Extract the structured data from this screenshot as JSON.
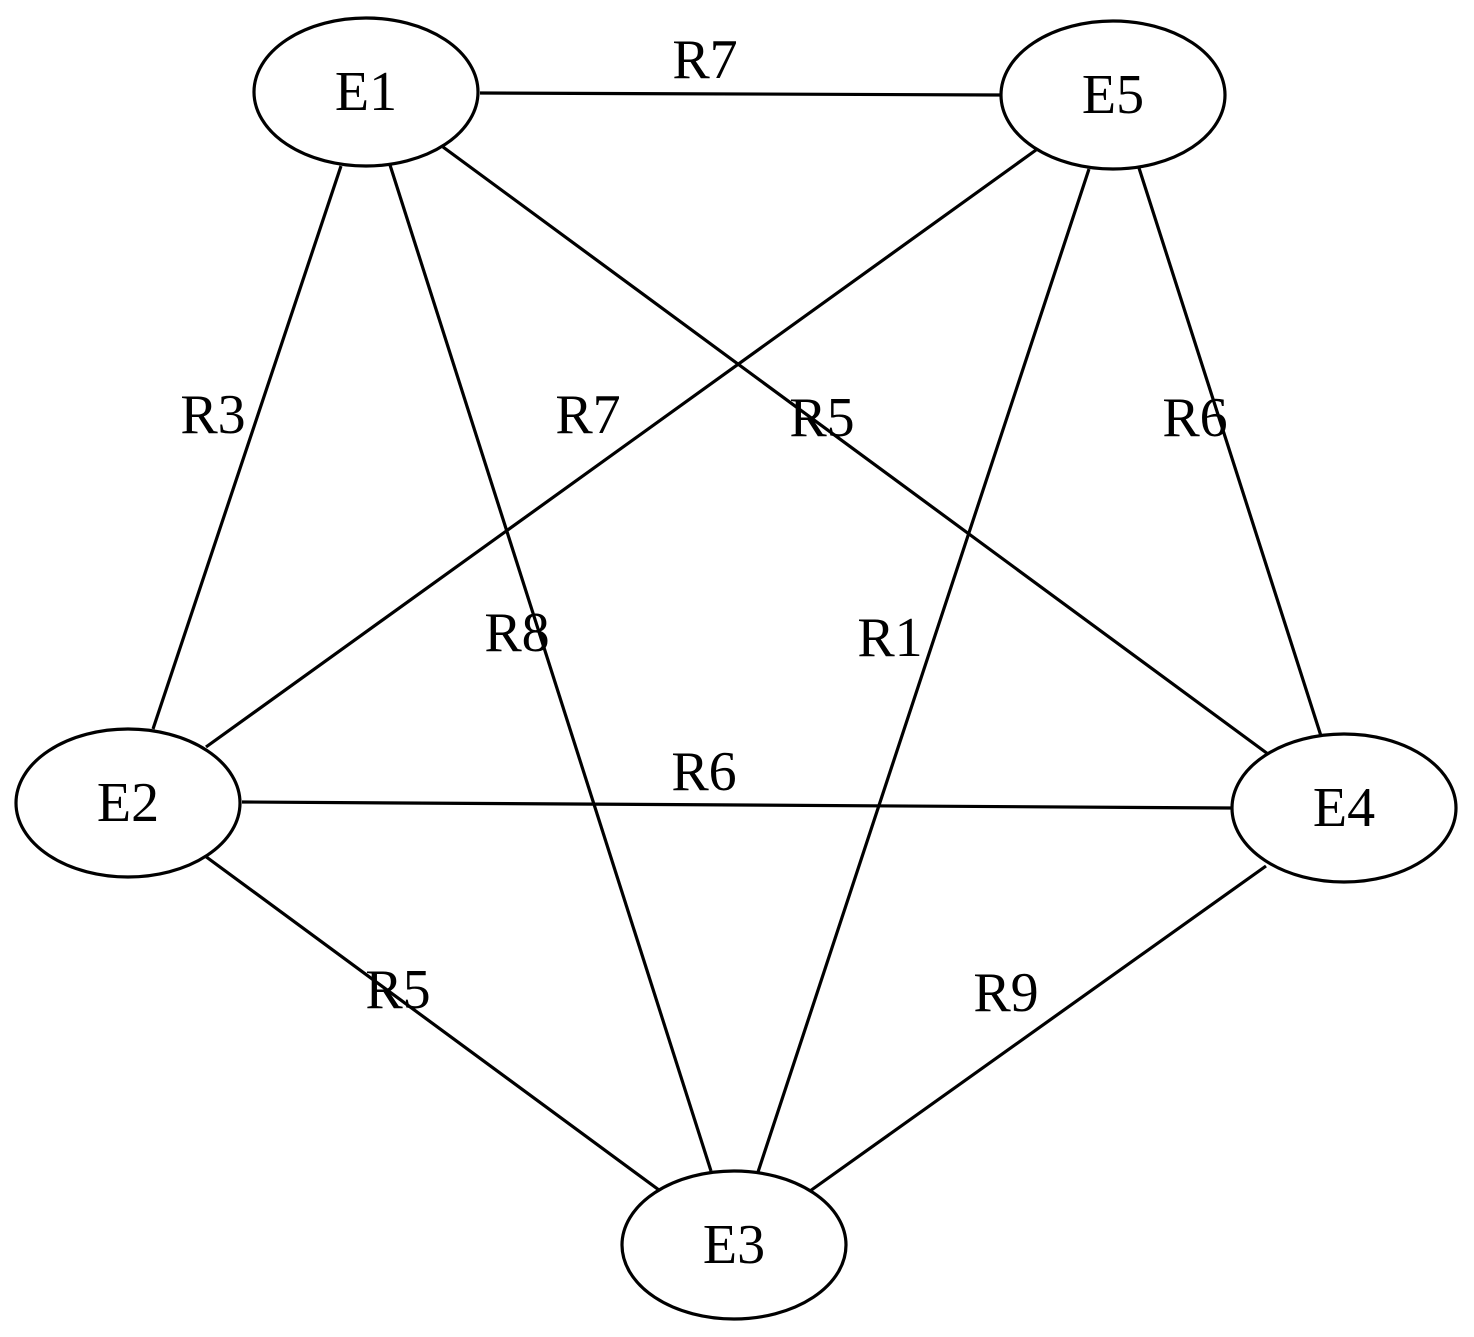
{
  "diagram": {
    "nodes": [
      {
        "id": "E1",
        "label": "E1"
      },
      {
        "id": "E2",
        "label": "E2"
      },
      {
        "id": "E3",
        "label": "E3"
      },
      {
        "id": "E4",
        "label": "E4"
      },
      {
        "id": "E5",
        "label": "E5"
      }
    ],
    "edges": [
      {
        "source": "E1",
        "target": "E5",
        "label": "R7"
      },
      {
        "source": "E1",
        "target": "E2",
        "label": "R3"
      },
      {
        "source": "E1",
        "target": "E3",
        "label": "R8"
      },
      {
        "source": "E1",
        "target": "E4",
        "label": "R5"
      },
      {
        "source": "E5",
        "target": "E2",
        "label": "R7"
      },
      {
        "source": "E5",
        "target": "E3",
        "label": "R1"
      },
      {
        "source": "E5",
        "target": "E4",
        "label": "R6"
      },
      {
        "source": "E2",
        "target": "E4",
        "label": "R6"
      },
      {
        "source": "E2",
        "target": "E3",
        "label": "R5"
      },
      {
        "source": "E4",
        "target": "E3",
        "label": "R9"
      }
    ]
  }
}
